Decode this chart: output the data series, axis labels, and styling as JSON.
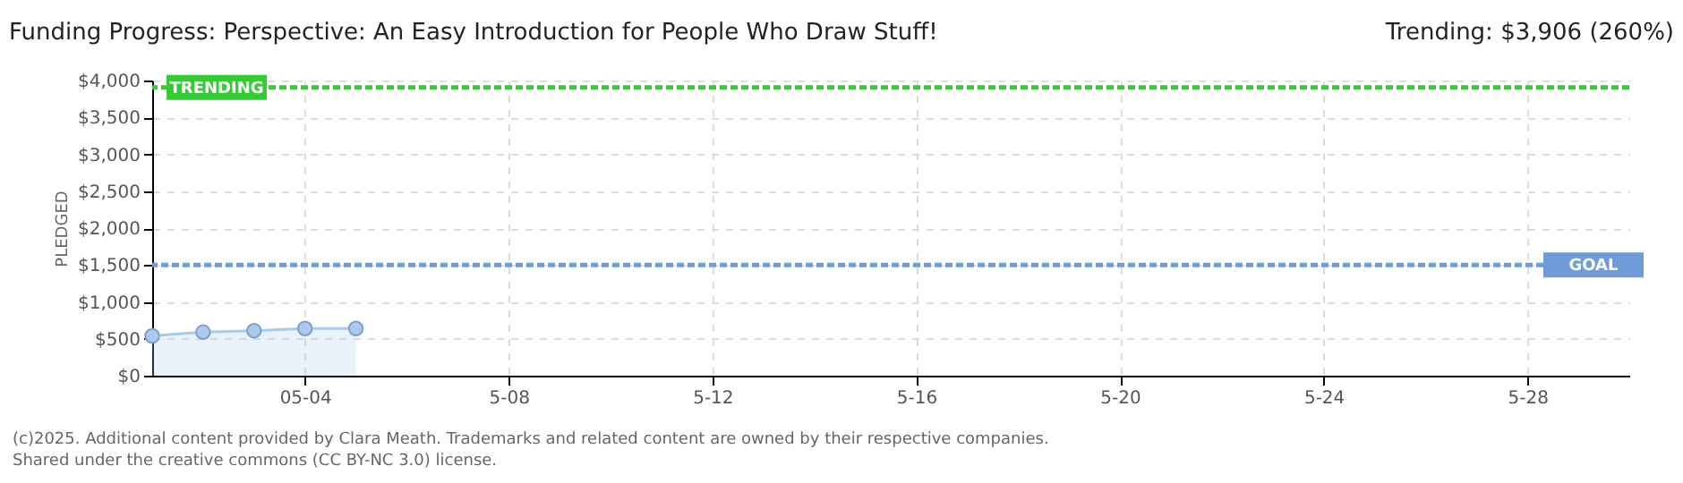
{
  "chart_data": {
    "type": "area",
    "title": "Funding Progress: Perspective: An Easy Introduction for People Who Draw Stuff!",
    "subtitle": "Trending:  $3,906 (260%)",
    "ylabel": "PLEDGED",
    "x": [
      "2025-05-01",
      "2025-05-02",
      "2025-05-03",
      "2025-05-04",
      "2025-05-05"
    ],
    "series": [
      {
        "color": "#a9c9ee",
        "values": [
          540,
          590,
          610,
          640,
          640
        ]
      }
    ],
    "xlim": [
      "2025-05-01",
      "2025-05-30"
    ],
    "xticks": [
      {
        "value": "2025-05-04",
        "label": "05-04"
      },
      {
        "value": "2025-05-08",
        "label": "5-08"
      },
      {
        "value": "2025-05-12",
        "label": "5-12"
      },
      {
        "value": "2025-05-16",
        "label": "5-16"
      },
      {
        "value": "2025-05-20",
        "label": "5-20"
      },
      {
        "value": "2025-05-24",
        "label": "5-24"
      },
      {
        "value": "2025-05-28",
        "label": "5-28"
      }
    ],
    "ylim": [
      0,
      4000
    ],
    "yticks": [
      {
        "value": 0,
        "label": "$0"
      },
      {
        "value": 500,
        "label": "$500"
      },
      {
        "value": 1000,
        "label": "$1,000"
      },
      {
        "value": 1500,
        "label": "$1,500"
      },
      {
        "value": 2000,
        "label": "$2,000"
      },
      {
        "value": 2500,
        "label": "$2,500"
      },
      {
        "value": 3000,
        "label": "$3,000"
      },
      {
        "value": 3500,
        "label": "$3,500"
      },
      {
        "value": 4000,
        "label": "$4,000"
      }
    ],
    "ref_lines": [
      {
        "axis": "y",
        "value": 3906,
        "label": "TRENDING",
        "color": "#33cc33",
        "line_style": "dashed"
      },
      {
        "axis": "y",
        "value": 1500,
        "label": "GOAL",
        "color": "#6f9bd6",
        "line_style": "dashed"
      }
    ],
    "annotations": [
      "(c)2025. Additional content provided by Clara Meath. Trademarks and related content are owned by their respective companies.",
      "Shared under the creative commons (CC BY-NC 3.0) license."
    ],
    "grid": true,
    "marker": "circle"
  }
}
